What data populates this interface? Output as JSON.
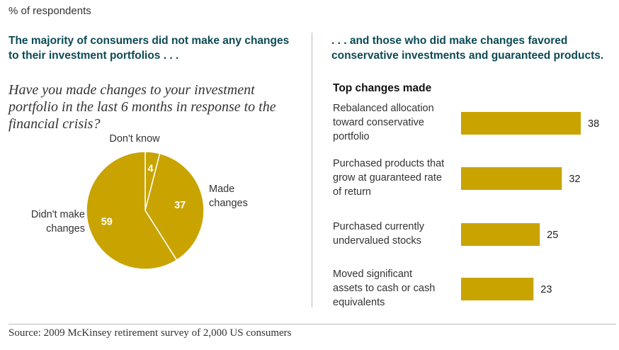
{
  "unit_label": "% of respondents",
  "left_heading": "The majority of consumers did not make any changes to their investment portfolios . . .",
  "right_heading": ". . . and those who did make changes favored conservative investments and guaranteed products.",
  "source": "Source: 2009 McKinsey retirement survey of 2,000 US consumers",
  "colors": {
    "fill": "#c9a400",
    "heading": "#0c4a55"
  },
  "chart_data": [
    {
      "type": "pie",
      "title": "Have you made changes to your investment portfolio in the last 6 months in response to the financial crisis?",
      "slices": [
        {
          "label": "Don't know",
          "value": 4,
          "label_lines": [
            "Don't know"
          ]
        },
        {
          "label": "Made changes",
          "value": 37,
          "label_lines": [
            "Made",
            "changes"
          ]
        },
        {
          "label": "Didn't make changes",
          "value": 59,
          "label_lines": [
            "Didn't make",
            "changes"
          ]
        }
      ]
    },
    {
      "type": "bar",
      "orientation": "horizontal",
      "title": "Top changes made",
      "categories": [
        "Rebalanced allocation toward conservative portfolio",
        "Purchased products that grow at guaranteed rate of return",
        "Purchased currently undervalued stocks",
        "Moved significant assets to cash or cash equivalents"
      ],
      "category_lines": [
        [
          "Rebalanced allocation",
          "toward conservative",
          "portfolio"
        ],
        [
          "Purchased products that",
          "grow at guaranteed rate",
          "of return"
        ],
        [
          "Purchased currently",
          "undervalued stocks"
        ],
        [
          "Moved significant",
          "assets to cash or cash",
          "equivalents"
        ]
      ],
      "values": [
        38,
        32,
        25,
        23
      ]
    }
  ]
}
